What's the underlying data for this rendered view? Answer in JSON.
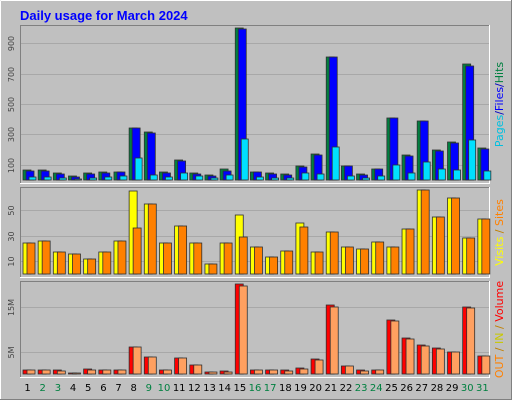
{
  "chart_data": {
    "type": "bar",
    "title": "Daily usage for March 2024",
    "x": [
      "1",
      "2",
      "3",
      "4",
      "5",
      "6",
      "7",
      "8",
      "9",
      "10",
      "11",
      "12",
      "13",
      "14",
      "15",
      "16",
      "17",
      "18",
      "19",
      "20",
      "21",
      "22",
      "23",
      "24",
      "25",
      "26",
      "27",
      "28",
      "29",
      "30",
      "31"
    ],
    "weekend_days": [
      "2",
      "3",
      "9",
      "10",
      "16",
      "17",
      "23",
      "24",
      "30",
      "31"
    ],
    "panels": [
      {
        "id": "hits",
        "axis_label_parts": [
          {
            "text": "Hits",
            "color": "#008040"
          },
          {
            "text": "/",
            "color": "#0000c0"
          },
          {
            "text": "Files",
            "color": "#0000ff"
          },
          {
            "text": "/",
            "color": "#0000c0"
          },
          {
            "text": "Pages",
            "color": "#00c0e0"
          }
        ],
        "yticks": [
          100,
          300,
          500,
          700,
          900
        ],
        "ylim": [
          0,
          1000
        ],
        "series": [
          {
            "name": "Hits",
            "color": "#008040",
            "values": [
              65,
              65,
              45,
              25,
              45,
              50,
              55,
              345,
              315,
              50,
              130,
              45,
              30,
              70,
              1000,
              55,
              45,
              40,
              95,
              170,
              810,
              95,
              40,
              75,
              405,
              165,
              390,
              195,
              250,
              760,
              210
            ]
          },
          {
            "name": "Files",
            "color": "#0000ff",
            "values": [
              60,
              60,
              40,
              20,
              40,
              45,
              50,
              345,
              310,
              45,
              125,
              40,
              25,
              60,
              995,
              50,
              40,
              35,
              85,
              165,
              810,
              90,
              35,
              70,
              405,
              160,
              385,
              190,
              245,
              750,
              205
            ]
          },
          {
            "name": "Pages",
            "color": "#00e0ff",
            "values": [
              20,
              18,
              12,
              8,
              15,
              20,
              25,
              145,
              35,
              20,
              45,
              25,
              10,
              30,
              270,
              20,
              15,
              15,
              45,
              40,
              215,
              25,
              15,
              25,
              100,
              45,
              120,
              70,
              65,
              260,
              60
            ]
          }
        ]
      },
      {
        "id": "visits",
        "axis_label_parts": [
          {
            "text": "Sites",
            "color": "#ff8000"
          },
          {
            "text": " / ",
            "color": "#c08000"
          },
          {
            "text": "Visits",
            "color": "#ffff00"
          }
        ],
        "yticks": [
          10,
          30,
          50
        ],
        "ylim": [
          0,
          66
        ],
        "series": [
          {
            "name": "Visits",
            "color": "#ffff00",
            "values": [
              24,
              26,
              17,
              16,
              12,
              17,
              26,
              65,
              55,
              24,
              38,
              24,
              8,
              24,
              46,
              21,
              13,
              18,
              40,
              17,
              33,
              21,
              20,
              25,
              21,
              35,
              66,
              45,
              60,
              28,
              43
            ]
          },
          {
            "name": "Sites",
            "color": "#ff8000",
            "values": [
              24,
              26,
              17,
              16,
              12,
              17,
              26,
              36,
              55,
              24,
              38,
              24,
              8,
              24,
              29,
              21,
              13,
              18,
              37,
              17,
              33,
              21,
              20,
              25,
              21,
              35,
              66,
              45,
              60,
              28,
              43
            ]
          }
        ]
      },
      {
        "id": "volume",
        "axis_label_parts": [
          {
            "text": "Volume",
            "color": "#ff0000"
          },
          {
            "text": " / ",
            "color": "#c08000"
          },
          {
            "text": "IN",
            "color": "#c8c800"
          },
          {
            "text": " / ",
            "color": "#c08000"
          },
          {
            "text": "OUT",
            "color": "#ff8000"
          }
        ],
        "ytick_labels": [
          "5M",
          "15M"
        ],
        "yticks": [
          5,
          15
        ],
        "ylim": [
          0,
          20
        ],
        "series": [
          {
            "name": "Volume",
            "color": "#ff0000",
            "values": [
              1.0,
              1.0,
              0.8,
              0.2,
              1.1,
              1.0,
              0.9,
              6.1,
              3.8,
              1.0,
              3.6,
              2.0,
              0.4,
              0.6,
              19.9,
              1.0,
              0.9,
              0.8,
              1.3,
              3.3,
              15.3,
              1.8,
              0.8,
              0.9,
              12.1,
              7.9,
              6.4,
              5.7,
              5.0,
              14.9,
              4.1
            ]
          },
          {
            "name": "OUT",
            "color": "#ffa060",
            "values": [
              0.9,
              0.9,
              0.7,
              0.2,
              1.0,
              0.9,
              0.8,
              5.9,
              3.7,
              0.9,
              3.5,
              1.9,
              0.4,
              0.5,
              19.6,
              0.9,
              0.8,
              0.7,
              1.2,
              3.1,
              15.0,
              1.7,
              0.7,
              0.8,
              11.8,
              7.7,
              6.2,
              5.5,
              4.9,
              14.6,
              4.0
            ]
          }
        ]
      }
    ],
    "grid": true
  }
}
